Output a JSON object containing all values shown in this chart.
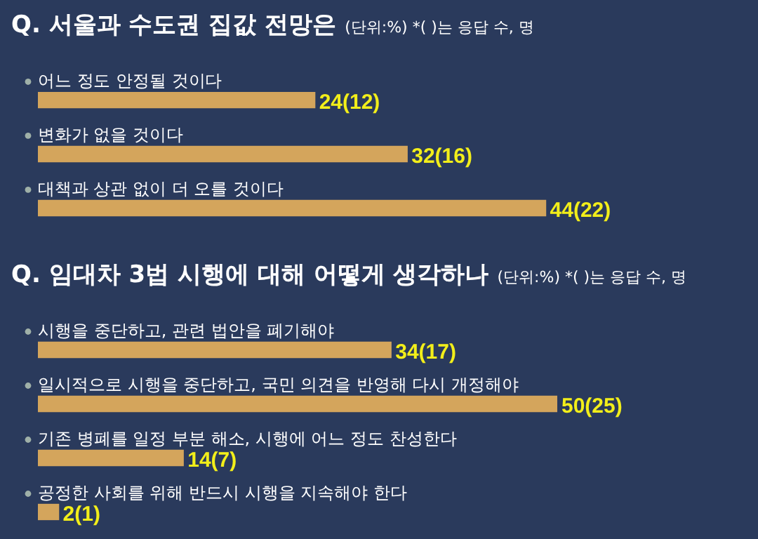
{
  "chart_data": [
    {
      "type": "bar",
      "orientation": "horizontal",
      "title": "Q. 서울과 수도권 집값 전망은",
      "subtitle": "(단위:%)   *( )는 응답 수, 명",
      "categories": [
        "어느 정도 안정될 것이다",
        "변화가 없을 것이다",
        "대책과 상관 없이 더 오를 것이다"
      ],
      "values": [
        24,
        32,
        44
      ],
      "value_labels": [
        "24(12)",
        "32(16)",
        "44(22)"
      ],
      "color": "#d4a55c",
      "tick_labels": false
    },
    {
      "type": "bar",
      "orientation": "horizontal",
      "title": "Q. 임대차 3법 시행에 대해 어떻게 생각하나",
      "subtitle": "(단위:%)   *( )는 응답 수, 명",
      "categories": [
        "시행을 중단하고, 관련 법안을 폐기해야",
        "일시적으로 시행을 중단하고, 국민 의견을 반영해 다시 개정해야",
        "기존 병폐를 일정 부분 해소, 시행에 어느 정도 찬성한다",
        "공정한 사회를 위해 반드시 시행을 지속해야 한다"
      ],
      "values": [
        34,
        50,
        14,
        2
      ],
      "value_labels": [
        "34(17)",
        "50(25)",
        "14(7)",
        "2(1)"
      ],
      "color": "#d4a55c",
      "tick_labels": false
    }
  ]
}
